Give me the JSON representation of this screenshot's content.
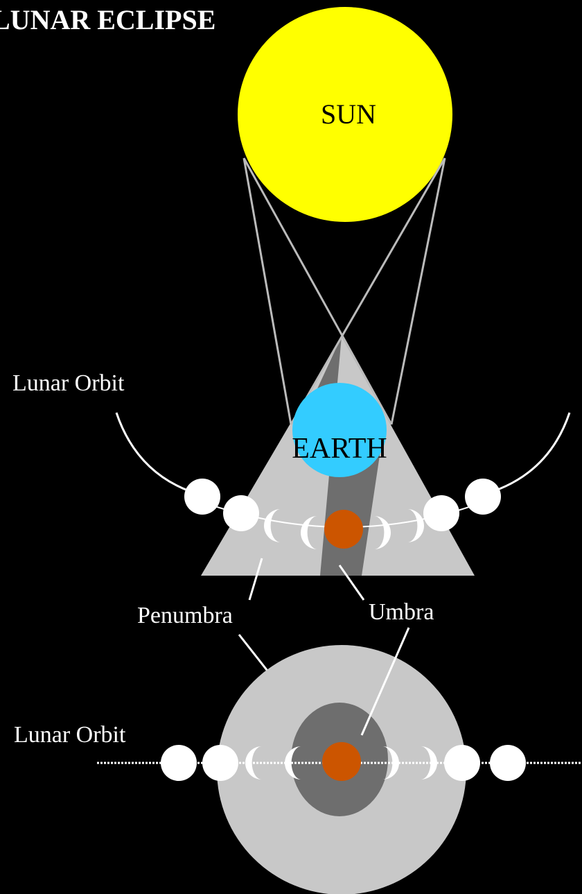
{
  "title": "LUNAR ECLIPSE",
  "labels": {
    "sun": "SUN",
    "earth": "EARTH",
    "lunar_orbit_top": "Lunar Orbit",
    "lunar_orbit_bottom": "Lunar Orbit",
    "penumbra": "Penumbra",
    "umbra": "Umbra"
  }
}
